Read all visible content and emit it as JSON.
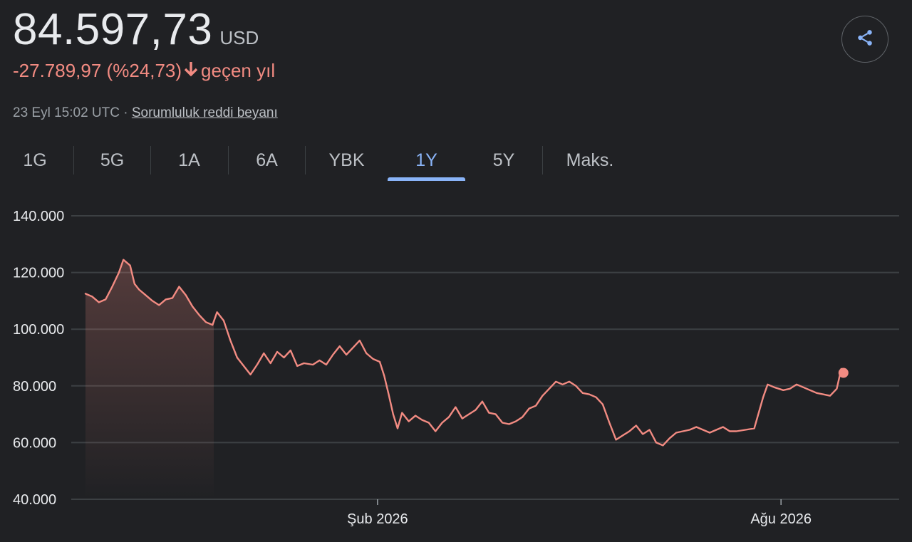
{
  "header": {
    "price": "84.597,73",
    "currency": "USD",
    "change": "-27.789,97 (%24,73)",
    "change_arrow_icon": "arrow-down-icon",
    "period_label": "geçen yıl",
    "timestamp": "23 Eyl 15:02 UTC",
    "separator": "·",
    "disclaimer": "Sorumluluk reddi beyanı",
    "share_icon": "share-icon"
  },
  "tabs": [
    {
      "label": "1G",
      "active": false
    },
    {
      "label": "5G",
      "active": false
    },
    {
      "label": "1A",
      "active": false
    },
    {
      "label": "6A",
      "active": false
    },
    {
      "label": "YBK",
      "active": false
    },
    {
      "label": "1Y",
      "active": true
    },
    {
      "label": "5Y",
      "active": false
    },
    {
      "label": "Maks.",
      "active": false
    }
  ],
  "colors": {
    "background": "#202124",
    "line": "#f28b82",
    "negative": "#f28b82",
    "active_tab": "#8ab4f8",
    "grid": "#3c4043"
  },
  "chart_data": {
    "type": "line",
    "title": "",
    "xlabel": "",
    "ylabel": "",
    "ylim": [
      40000,
      140000
    ],
    "yticks": [
      140000,
      120000,
      100000,
      80000,
      60000,
      40000
    ],
    "ytick_labels": [
      "140.000",
      "120.000",
      "100.000",
      "80.000",
      "60.000",
      "40.000"
    ],
    "x_domain": [
      "2025-09-23",
      "2026-09-23"
    ],
    "xtick_dates": [
      "2026-02-01",
      "2026-08-01"
    ],
    "xtick_labels": [
      "Şub 2026",
      "Ağu 2026"
    ],
    "grid": true,
    "series": [
      {
        "values": [
          [
            "2025-09-23",
            112500
          ],
          [
            "2025-09-26",
            111500
          ],
          [
            "2025-09-29",
            109500
          ],
          [
            "2025-10-02",
            110500
          ],
          [
            "2025-10-05",
            115000
          ],
          [
            "2025-10-08",
            120000
          ],
          [
            "2025-10-10",
            124500
          ],
          [
            "2025-10-13",
            122500
          ],
          [
            "2025-10-15",
            116000
          ],
          [
            "2025-10-17",
            114000
          ],
          [
            "2025-10-20",
            112000
          ],
          [
            "2025-10-23",
            110000
          ],
          [
            "2025-10-26",
            108500
          ],
          [
            "2025-10-29",
            110500
          ],
          [
            "2025-11-01",
            111000
          ],
          [
            "2025-11-04",
            115000
          ],
          [
            "2025-11-07",
            112000
          ],
          [
            "2025-11-10",
            108000
          ],
          [
            "2025-11-13",
            105000
          ],
          [
            "2025-11-16",
            102500
          ],
          [
            "2025-11-19",
            101500
          ],
          [
            "2025-11-21",
            106000
          ],
          [
            "2025-11-24",
            103000
          ],
          [
            "2025-11-27",
            96000
          ],
          [
            "2025-11-30",
            90000
          ],
          [
            "2025-12-03",
            87000
          ],
          [
            "2025-12-06",
            84000
          ],
          [
            "2025-12-09",
            87500
          ],
          [
            "2025-12-12",
            91500
          ],
          [
            "2025-12-15",
            88000
          ],
          [
            "2025-12-18",
            92000
          ],
          [
            "2025-12-21",
            90000
          ],
          [
            "2025-12-24",
            92500
          ],
          [
            "2025-12-27",
            87000
          ],
          [
            "2025-12-30",
            88000
          ],
          [
            "2026-01-03",
            87500
          ],
          [
            "2026-01-06",
            89000
          ],
          [
            "2026-01-09",
            87500
          ],
          [
            "2026-01-12",
            91000
          ],
          [
            "2026-01-15",
            94000
          ],
          [
            "2026-01-18",
            91000
          ],
          [
            "2026-01-21",
            93500
          ],
          [
            "2026-01-24",
            96000
          ],
          [
            "2026-01-27",
            91500
          ],
          [
            "2026-01-30",
            89500
          ],
          [
            "2026-02-02",
            88500
          ],
          [
            "2026-02-04",
            83500
          ],
          [
            "2026-02-06",
            77000
          ],
          [
            "2026-02-08",
            70000
          ],
          [
            "2026-02-10",
            65000
          ],
          [
            "2026-02-12",
            70500
          ],
          [
            "2026-02-15",
            67500
          ],
          [
            "2026-02-18",
            69500
          ],
          [
            "2026-02-21",
            68000
          ],
          [
            "2026-02-24",
            67000
          ],
          [
            "2026-02-27",
            64000
          ],
          [
            "2026-03-02",
            67000
          ],
          [
            "2026-03-05",
            69000
          ],
          [
            "2026-03-08",
            72500
          ],
          [
            "2026-03-11",
            68500
          ],
          [
            "2026-03-14",
            70000
          ],
          [
            "2026-03-17",
            71500
          ],
          [
            "2026-03-20",
            74500
          ],
          [
            "2026-03-23",
            70500
          ],
          [
            "2026-03-26",
            70000
          ],
          [
            "2026-03-29",
            67000
          ],
          [
            "2026-04-01",
            66500
          ],
          [
            "2026-04-04",
            67500
          ],
          [
            "2026-04-07",
            69000
          ],
          [
            "2026-04-10",
            72000
          ],
          [
            "2026-04-13",
            73000
          ],
          [
            "2026-04-16",
            76500
          ],
          [
            "2026-04-19",
            79000
          ],
          [
            "2026-04-22",
            81500
          ],
          [
            "2026-04-25",
            80500
          ],
          [
            "2026-04-28",
            81500
          ],
          [
            "2026-05-01",
            80000
          ],
          [
            "2026-05-04",
            77500
          ],
          [
            "2026-05-07",
            77000
          ],
          [
            "2026-05-10",
            76000
          ],
          [
            "2026-05-13",
            73500
          ],
          [
            "2026-05-16",
            67000
          ],
          [
            "2026-05-19",
            61000
          ],
          [
            "2026-05-22",
            62500
          ],
          [
            "2026-05-25",
            64000
          ],
          [
            "2026-05-28",
            66000
          ],
          [
            "2026-05-31",
            63000
          ],
          [
            "2026-06-03",
            64500
          ],
          [
            "2026-06-06",
            60000
          ],
          [
            "2026-06-09",
            59000
          ],
          [
            "2026-06-12",
            61500
          ],
          [
            "2026-06-15",
            63500
          ],
          [
            "2026-06-18",
            64000
          ],
          [
            "2026-06-21",
            64500
          ],
          [
            "2026-06-24",
            65500
          ],
          [
            "2026-06-27",
            64500
          ],
          [
            "2026-06-30",
            63500
          ],
          [
            "2026-07-03",
            64500
          ],
          [
            "2026-07-06",
            65500
          ],
          [
            "2026-07-09",
            64000
          ],
          [
            "2026-07-12",
            64000
          ],
          [
            "2026-07-16",
            64500
          ],
          [
            "2026-07-20",
            65000
          ],
          [
            "2026-07-24",
            76000
          ],
          [
            "2026-07-26",
            80500
          ],
          [
            "2026-07-29",
            79500
          ],
          [
            "2026-08-02",
            78500
          ],
          [
            "2026-08-05",
            79000
          ],
          [
            "2026-08-08",
            80500
          ],
          [
            "2026-08-11",
            79500
          ],
          [
            "2026-08-14",
            78500
          ],
          [
            "2026-08-17",
            77500
          ],
          [
            "2026-08-20",
            77000
          ],
          [
            "2026-08-23",
            76500
          ],
          [
            "2026-08-26",
            79000
          ],
          [
            "2026-08-28",
            86000
          ],
          [
            "2026-08-29",
            84600
          ]
        ]
      }
    ]
  }
}
